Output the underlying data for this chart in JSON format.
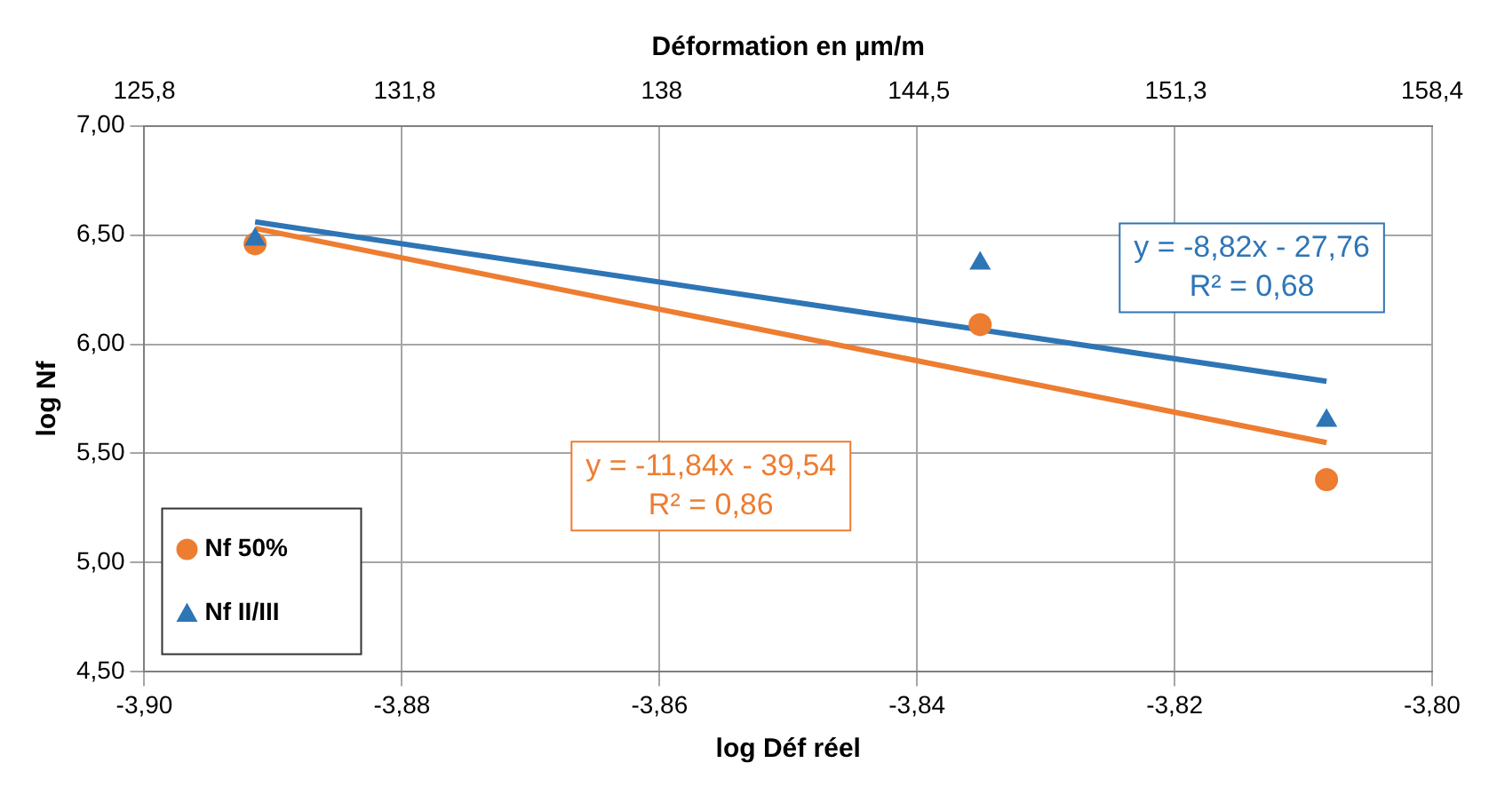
{
  "chart_data": {
    "type": "scatter",
    "xlabel": "log Déf réel",
    "ylabel": "log Nf",
    "x2label": "Déformation en µm/m",
    "xlim": [
      -3.9,
      -3.8
    ],
    "xticks": [
      {
        "value": -3.9,
        "label": "-3,90"
      },
      {
        "value": -3.88,
        "label": "-3,88"
      },
      {
        "value": -3.86,
        "label": "-3,86"
      },
      {
        "value": -3.84,
        "label": "-3,84"
      },
      {
        "value": -3.82,
        "label": "-3,82"
      },
      {
        "value": -3.8,
        "label": "-3,80"
      }
    ],
    "ylim": [
      4.5,
      7
    ],
    "yticks": [
      {
        "value": 4.5,
        "label": "4,50"
      },
      {
        "value": 5,
        "label": "5,00"
      },
      {
        "value": 5.5,
        "label": "5,50"
      },
      {
        "value": 6,
        "label": "6,00"
      },
      {
        "value": 6.5,
        "label": "6,50"
      },
      {
        "value": 7,
        "label": "7,00"
      }
    ],
    "x2lim": [
      125.8,
      158.4
    ],
    "x2ticks": [
      {
        "value": 125.8,
        "label": "125,8"
      },
      {
        "value": 131.8,
        "label": "131,8"
      },
      {
        "value": 138,
        "label": "138"
      },
      {
        "value": 144.5,
        "label": "144,5"
      },
      {
        "value": 151.3,
        "label": "151,3"
      },
      {
        "value": 158.4,
        "label": "158,4"
      }
    ],
    "log": "x2",
    "grid": true,
    "legend": "bottom left",
    "series": [
      {
        "name": "Nf 50%",
        "marker": "circle",
        "color": "#ed7d31",
        "x": [
          -3.8914,
          -3.8351,
          -3.8082
        ],
        "values": [
          6.46,
          6.09,
          5.38
        ]
      },
      {
        "name": "Nf II/III",
        "marker": "triangle",
        "color": "#2e75b6",
        "x": [
          -3.8914,
          -3.8351,
          -3.8082
        ],
        "values": [
          6.48,
          6.37,
          5.65
        ]
      },
      {
        "type": "line",
        "marker": "none",
        "color": "#ed7d31",
        "x": [
          -3.8914,
          -3.8082
        ],
        "values": [
          6.53,
          5.55
        ]
      },
      {
        "type": "line",
        "marker": "none",
        "color": "#2e75b6",
        "x": [
          -3.8914,
          -3.8082
        ],
        "values": [
          6.56,
          5.83
        ]
      }
    ],
    "annotations": [
      "y = -11,84x - 39,54\nR² = 0,86",
      "y = -8,82x - 27,76\nR² = 0,68"
    ]
  }
}
